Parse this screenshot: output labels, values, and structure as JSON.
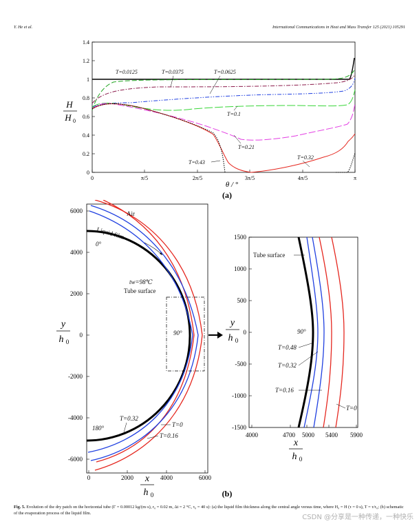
{
  "header": {
    "left": "Y. He et al.",
    "right": "International Communications in Heat and Mass Transfer 125 (2021) 105291"
  },
  "figure_a": {
    "panel_label": "(a)",
    "y_label_top": "H",
    "y_label_bottom": "H",
    "y_label_sub": "0",
    "x_label": "θ / °",
    "y_ticks": [
      "0",
      "0.2",
      "0.4",
      "0.6",
      "0.8",
      "1",
      "1.2",
      "1.4"
    ],
    "x_ticks": [
      "0",
      "π/5",
      "2π/5",
      "3π/5",
      "4π/5",
      "π"
    ],
    "curve_labels": [
      "T=0.0125",
      "T=0.0375",
      "T=0.0625",
      "T=0.1",
      "T=0.21",
      "T=0.32",
      "T=0.43"
    ]
  },
  "figure_b": {
    "panel_label": "(b)",
    "left_y_ticks": [
      "6000",
      "4000",
      "2000",
      "0",
      "-2000",
      "-4000",
      "-6000"
    ],
    "left_x_ticks": [
      "0",
      "2000",
      "4000",
      "6000"
    ],
    "right_y_ticks": [
      "1500",
      "1000",
      "500",
      "0",
      "-500",
      "-1000",
      "-1500"
    ],
    "right_x_ticks": [
      "4000",
      "4700",
      "5000",
      "5400",
      "5900"
    ],
    "y_label": "y",
    "x_label": "x",
    "label_sub": "0",
    "label_h": "h",
    "left_labels": {
      "air": "Air",
      "liquid_film": "Liquid film",
      "angle_0": "0°",
      "tw": "tw=98℃",
      "tube_surface": "Tube surface",
      "angle_90": "90°",
      "angle_180": "180°",
      "t032": "T=0.32",
      "t0": "T=0",
      "t016": "T=0.16"
    },
    "right_labels": {
      "tube_surface": "Tube surface",
      "angle_90": "90°",
      "t048": "T=0.48",
      "t032": "T=0.32",
      "t016": "T=0.16",
      "t0": "T=0"
    }
  },
  "caption": {
    "label": "Fig. 5.",
    "text": "Evolution of the dry patch on the horizontal tube (Γ = 0.00012 kg/(m·s), r₀ = 0.02 m, Δt = 2 °C, τ₀ = 40 s): (a) the liquid film thickness along the central angle versus time, where H₀ = H (τ = 0 s), T = τ/τ₀; (b) schematic of the evaporation process of the liquid film."
  },
  "watermark": "CSDN @分享是一种传递，一种快乐",
  "colors": {
    "black": "#000000",
    "green": "#21a521",
    "maroon": "#8b1a4a",
    "blue": "#1f3fe0",
    "green2": "#37d637",
    "magenta": "#e33ce3",
    "red": "#e5261e"
  }
}
